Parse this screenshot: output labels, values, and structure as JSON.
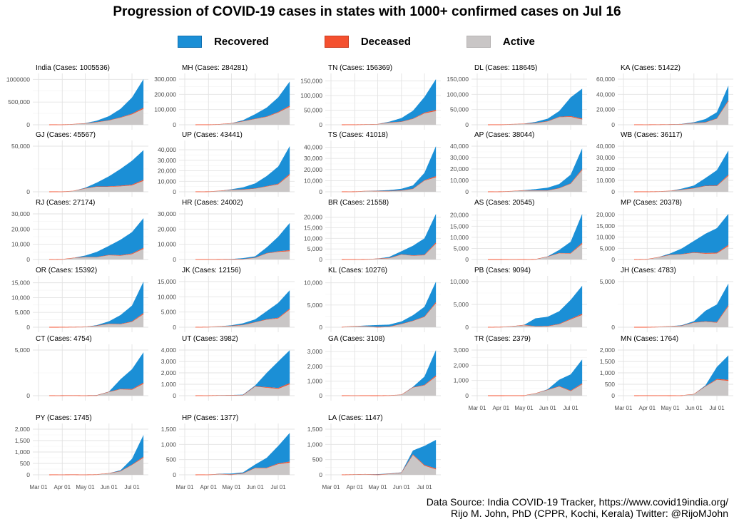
{
  "chart_data": {
    "type": "area",
    "title": "Progression of COVID-19 cases in states with 1000+ confirmed cases on Jul 16",
    "legend": {
      "placement": "top",
      "items": [
        {
          "label": "Recovered",
          "color": "#1b8fd6"
        },
        {
          "label": "Deceased",
          "color": "#f4502f"
        },
        {
          "label": "Active",
          "color": "#c9c6c6"
        }
      ]
    },
    "x_ticks": [
      {
        "day": 0,
        "label": "Mar 01"
      },
      {
        "day": 31,
        "label": "Apr 01"
      },
      {
        "day": 61,
        "label": "May 01"
      },
      {
        "day": 92,
        "label": "Jun 01"
      },
      {
        "day": 122,
        "label": "Jul 01"
      }
    ],
    "x_days_since_mar01": [
      14,
      31,
      45,
      61,
      76,
      92,
      107,
      122,
      137
    ],
    "deceased_share_approx": 0.025,
    "panels": [
      {
        "title": "India (Cases: 1005536)",
        "yticks": [
          0,
          500000,
          1000000
        ],
        "ytick_labels": [
          "0",
          "500,000",
          "1000000"
        ],
        "total": [
          100,
          1800,
          12000,
          35000,
          90000,
          190000,
          350000,
          600000,
          1005536
        ],
        "active": [
          90,
          1600,
          10000,
          25000,
          55000,
          95000,
          155000,
          230000,
          350000
        ]
      },
      {
        "title": "MH (Cases: 284281)",
        "yticks": [
          0,
          100000,
          200000,
          300000
        ],
        "ytick_labels": [
          "0",
          "100,000",
          "200,000",
          "300,000"
        ],
        "total": [
          30,
          300,
          2900,
          10500,
          30000,
          70000,
          113000,
          180000,
          284281
        ],
        "active": [
          30,
          280,
          2500,
          8500,
          22000,
          38000,
          52000,
          80000,
          118000
        ]
      },
      {
        "title": "TN (Cases: 156369)",
        "yticks": [
          0,
          50000,
          100000,
          150000
        ],
        "ytick_labels": [
          "0",
          "50,000",
          "100,000",
          "150,000"
        ],
        "total": [
          1,
          120,
          1200,
          2500,
          10500,
          23000,
          48000,
          95000,
          156369
        ],
        "active": [
          1,
          115,
          1000,
          1500,
          7000,
          10000,
          20000,
          39000,
          47000
        ]
      },
      {
        "title": "DL (Cases: 118645)",
        "yticks": [
          0,
          50000,
          100000,
          150000
        ],
        "ytick_labels": [
          "0",
          "50,000",
          "100,000",
          "150,000"
        ],
        "total": [
          7,
          150,
          1600,
          3500,
          9300,
          20000,
          45000,
          90000,
          118645
        ],
        "active": [
          7,
          140,
          1500,
          2500,
          5000,
          11000,
          25000,
          26000,
          17500
        ]
      },
      {
        "title": "KA (Cases: 51422)",
        "yticks": [
          0,
          20000,
          40000,
          60000
        ],
        "ytick_labels": [
          "0",
          "20,000",
          "40,000",
          "60,000"
        ],
        "total": [
          10,
          100,
          280,
          600,
          1100,
          3300,
          7500,
          16500,
          51422
        ],
        "active": [
          8,
          80,
          200,
          350,
          500,
          2000,
          3000,
          8000,
          31000
        ]
      },
      {
        "title": "GJ (Cases: 45567)",
        "yticks": [
          0,
          50000
        ],
        "ytick_labels": [
          "0",
          "50,000"
        ],
        "total": [
          0,
          80,
          800,
          4400,
          10000,
          17000,
          25000,
          34000,
          45567
        ],
        "active": [
          0,
          70,
          700,
          3500,
          5500,
          5500,
          6000,
          7000,
          12000
        ]
      },
      {
        "title": "UP (Cases: 43441)",
        "yticks": [
          0,
          10000,
          20000,
          30000,
          40000
        ],
        "ytick_labels": [
          "0",
          "10,000",
          "20,000",
          "30,000",
          "40,000"
        ],
        "total": [
          10,
          110,
          800,
          2400,
          4200,
          8000,
          15000,
          24000,
          43441
        ],
        "active": [
          10,
          100,
          700,
          1700,
          2000,
          3000,
          5000,
          7000,
          16000
        ]
      },
      {
        "title": "TS (Cases: 41018)",
        "yticks": [
          0,
          10000,
          20000,
          30000,
          40000
        ],
        "ytick_labels": [
          "0",
          "10,000",
          "20,000",
          "30,000",
          "40,000"
        ],
        "total": [
          5,
          100,
          650,
          1050,
          1500,
          2700,
          5700,
          17000,
          41018
        ],
        "active": [
          5,
          90,
          550,
          500,
          500,
          1000,
          2500,
          10000,
          13000
        ]
      },
      {
        "title": "AP (Cases: 38044)",
        "yticks": [
          0,
          10000,
          20000,
          30000,
          40000
        ],
        "ytick_labels": [
          "0",
          "10,000",
          "20,000",
          "30,000",
          "40,000"
        ],
        "total": [
          1,
          90,
          500,
          1450,
          2300,
          3600,
          6800,
          15000,
          38044
        ],
        "active": [
          1,
          88,
          450,
          1000,
          1000,
          1000,
          3000,
          7000,
          19000
        ]
      },
      {
        "title": "WB (Cases: 36117)",
        "yticks": [
          0,
          10000,
          20000,
          30000,
          40000
        ],
        "ytick_labels": [
          "0",
          "10,000",
          "20,000",
          "30,000",
          "40,000"
        ],
        "total": [
          1,
          30,
          230,
          800,
          2700,
          5500,
          12000,
          19000,
          36117
        ],
        "active": [
          1,
          25,
          200,
          600,
          1700,
          3000,
          5000,
          5000,
          14000
        ]
      },
      {
        "title": "RJ (Cases: 27174)",
        "yticks": [
          0,
          10000,
          20000,
          30000
        ],
        "ytick_labels": [
          "0",
          "10,000",
          "20,000",
          "30,000"
        ],
        "total": [
          4,
          100,
          1000,
          2600,
          5000,
          9000,
          13000,
          18000,
          27174
        ],
        "active": [
          4,
          90,
          900,
          1500,
          1500,
          2800,
          2500,
          3500,
          7000
        ]
      },
      {
        "title": "HR (Cases: 24002)",
        "yticks": [
          0,
          10000,
          20000,
          30000
        ],
        "ytick_labels": [
          "0",
          "10,000",
          "20,000",
          "30,000"
        ],
        "total": [
          14,
          40,
          220,
          350,
          900,
          2100,
          8000,
          15000,
          24002
        ],
        "active": [
          10,
          30,
          60,
          100,
          150,
          1100,
          4000,
          5000,
          5500
        ]
      },
      {
        "title": "BR (Cases: 21558)",
        "yticks": [
          0,
          5000,
          10000,
          15000,
          20000
        ],
        "ytick_labels": [
          "0",
          "5,000",
          "10,000",
          "15,000",
          "20,000"
        ],
        "total": [
          0,
          20,
          70,
          450,
          1200,
          3900,
          6500,
          10000,
          21558
        ],
        "active": [
          0,
          18,
          50,
          300,
          600,
          2300,
          1800,
          2000,
          7500
        ]
      },
      {
        "title": "AS (Cases: 20545)",
        "yticks": [
          0,
          5000,
          10000,
          15000,
          20000
        ],
        "ytick_labels": [
          "0",
          "5,000",
          "10,000",
          "15,000",
          "20,000"
        ],
        "total": [
          0,
          1,
          35,
          45,
          100,
          1400,
          4300,
          8000,
          20545
        ],
        "active": [
          0,
          1,
          30,
          10,
          50,
          1200,
          2800,
          2700,
          7000
        ]
      },
      {
        "title": "MP (Cases: 20378)",
        "yticks": [
          0,
          5000,
          10000,
          15000,
          20000
        ],
        "ytick_labels": [
          "0",
          "5,000",
          "10,000",
          "15,000",
          "20,000"
        ],
        "total": [
          0,
          100,
          1000,
          2700,
          4900,
          8300,
          11500,
          14000,
          20378
        ],
        "active": [
          0,
          90,
          900,
          2000,
          2300,
          3000,
          2600,
          2700,
          6000
        ]
      },
      {
        "title": "OR (Cases: 15392)",
        "yticks": [
          0,
          5000,
          10000,
          15000
        ],
        "ytick_labels": [
          "0",
          "5,000",
          "10,000",
          "15,000"
        ],
        "total": [
          0,
          4,
          60,
          150,
          700,
          2000,
          4100,
          7300,
          15392
        ],
        "active": [
          0,
          4,
          50,
          100,
          450,
          1100,
          1000,
          1800,
          4400
        ]
      },
      {
        "title": "JK (Cases: 12156)",
        "yticks": [
          0,
          5000,
          10000,
          15000
        ],
        "ytick_labels": [
          "0",
          "5,000",
          "10,000",
          "15,000"
        ],
        "total": [
          0,
          60,
          300,
          650,
          1300,
          2600,
          5300,
          8000,
          12156
        ],
        "active": [
          0,
          55,
          260,
          400,
          700,
          1600,
          2500,
          2900,
          5800
        ]
      },
      {
        "title": "KL (Cases: 10276)",
        "yticks": [
          0,
          5000,
          10000
        ],
        "ytick_labels": [
          "0",
          "5,000",
          "10,000"
        ],
        "total": [
          25,
          240,
          390,
          500,
          590,
          1300,
          2700,
          4600,
          10276
        ],
        "active": [
          20,
          230,
          170,
          20,
          100,
          700,
          1400,
          2300,
          5400
        ]
      },
      {
        "title": "PB (Cases: 9094)",
        "yticks": [
          0,
          5000,
          10000
        ],
        "ytick_labels": [
          "0",
          "5,000",
          "10,000"
        ],
        "total": [
          1,
          45,
          190,
          500,
          1950,
          2300,
          3500,
          6000,
          9094
        ],
        "active": [
          1,
          40,
          160,
          450,
          170,
          200,
          650,
          1700,
          2700
        ]
      },
      {
        "title": "JH (Cases: 4783)",
        "yticks": [
          0,
          5000
        ],
        "ytick_labels": [
          "0",
          "5,000"
        ],
        "total": [
          0,
          1,
          30,
          110,
          220,
          660,
          1800,
          2500,
          4783
        ],
        "active": [
          0,
          1,
          28,
          90,
          140,
          500,
          600,
          500,
          2300
        ]
      },
      {
        "title": "CT (Cases: 4754)",
        "yticks": [
          0,
          5000
        ],
        "ytick_labels": [
          "0",
          "5,000"
        ],
        "total": [
          1,
          10,
          30,
          40,
          60,
          450,
          1800,
          2900,
          4754
        ],
        "active": [
          1,
          10,
          15,
          5,
          20,
          400,
          700,
          650,
          1300
        ]
      },
      {
        "title": "UT (Cases: 3982)",
        "yticks": [
          0,
          1000,
          2000,
          3000,
          4000
        ],
        "ytick_labels": [
          "0",
          "1,000",
          "2,000",
          "3,000",
          "4,000"
        ],
        "total": [
          0,
          7,
          40,
          60,
          90,
          900,
          2000,
          3000,
          3982
        ],
        "active": [
          0,
          7,
          30,
          25,
          30,
          800,
          700,
          600,
          1000
        ]
      },
      {
        "title": "GA (Cases: 3108)",
        "yticks": [
          0,
          1000,
          2000,
          3000
        ],
        "ytick_labels": [
          "0",
          "1,000",
          "2,000",
          "3,000"
        ],
        "total": [
          0,
          5,
          7,
          7,
          20,
          70,
          600,
          1300,
          3108
        ],
        "active": [
          0,
          5,
          1,
          0,
          12,
          50,
          550,
          700,
          1300
        ]
      },
      {
        "title": "TR (Cases: 2379)",
        "yticks": [
          0,
          1000,
          2000,
          3000
        ],
        "ytick_labels": [
          "0",
          "1,000",
          "2,000",
          "3,000"
        ],
        "total": [
          0,
          0,
          2,
          2,
          150,
          420,
          1050,
          1400,
          2379
        ],
        "active": [
          0,
          0,
          2,
          0,
          140,
          370,
          600,
          300,
          750
        ]
      },
      {
        "title": "MN (Cases: 1764)",
        "yticks": [
          0,
          500,
          1000,
          1500,
          2000
        ],
        "ytick_labels": [
          "0",
          "500",
          "1,000",
          "1,500",
          "2,000"
        ],
        "total": [
          0,
          1,
          2,
          2,
          4,
          70,
          450,
          1260,
          1764
        ],
        "active": [
          0,
          1,
          2,
          0,
          4,
          60,
          400,
          700,
          650
        ]
      },
      {
        "title": "PY (Cases: 1745)",
        "yticks": [
          0,
          500,
          1000,
          1500,
          2000
        ],
        "ytick_labels": [
          "0",
          "500",
          "1,000",
          "1,500",
          "2,000"
        ],
        "total": [
          0,
          3,
          7,
          8,
          12,
          70,
          200,
          700,
          1745
        ],
        "active": [
          0,
          3,
          5,
          2,
          10,
          60,
          150,
          430,
          750
        ]
      },
      {
        "title": "HP (Cases: 1377)",
        "yticks": [
          0,
          500,
          1000,
          1500
        ],
        "ytick_labels": [
          "0",
          "500",
          "1,000",
          "1,500"
        ],
        "total": [
          0,
          3,
          35,
          40,
          80,
          340,
          560,
          950,
          1377
        ],
        "active": [
          0,
          2,
          20,
          5,
          40,
          220,
          220,
          350,
          400
        ]
      },
      {
        "title": "LA (Cases: 1147)",
        "yticks": [
          0,
          500,
          1000,
          1500
        ],
        "ytick_labels": [
          "0",
          "500",
          "1,000",
          "1,500"
        ],
        "total": [
          0,
          13,
          18,
          22,
          43,
          80,
          800,
          950,
          1147
        ],
        "active": [
          0,
          10,
          15,
          2,
          25,
          60,
          650,
          300,
          180
        ]
      }
    ]
  },
  "caption": {
    "line1": "Data Source: India COVID-19 Tracker, https://www.covid19india.org/",
    "line2": "Rijo M. John, PhD (CPPR, Kochi, Kerala) Twitter: @RijoMJohn"
  }
}
